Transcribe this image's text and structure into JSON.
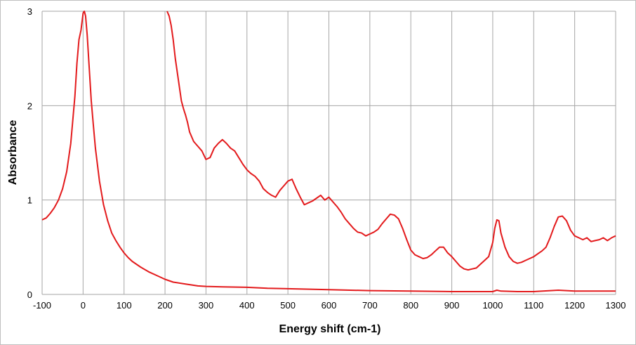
{
  "chart_data": {
    "type": "line",
    "xlabel": "Energy shift (cm-1)",
    "ylabel": "Absorbance",
    "xlim": [
      -100,
      1300
    ],
    "ylim": [
      0,
      3
    ],
    "x_ticks": [
      -100,
      0,
      100,
      200,
      300,
      400,
      500,
      600,
      700,
      800,
      900,
      1000,
      1100,
      1200,
      1300
    ],
    "y_ticks": [
      0,
      1,
      2,
      3
    ],
    "grid": true,
    "legend": "none",
    "line_color": "#e31a1c",
    "grid_color": "#a6a6a6",
    "series": [
      {
        "values": [
          [
            -100,
            0.79
          ],
          [
            -90,
            0.81
          ],
          [
            -80,
            0.86
          ],
          [
            -70,
            0.92
          ],
          [
            -60,
            1.0
          ],
          [
            -50,
            1.12
          ],
          [
            -40,
            1.3
          ],
          [
            -30,
            1.6
          ],
          [
            -20,
            2.1
          ],
          [
            -15,
            2.45
          ],
          [
            -10,
            2.7
          ],
          [
            -5,
            2.8
          ],
          [
            0,
            2.98
          ],
          [
            3,
            3.0
          ],
          [
            6,
            2.95
          ],
          [
            10,
            2.75
          ],
          [
            15,
            2.4
          ],
          [
            20,
            2.05
          ],
          [
            25,
            1.8
          ],
          [
            30,
            1.55
          ],
          [
            40,
            1.2
          ],
          [
            50,
            0.95
          ],
          [
            60,
            0.78
          ],
          [
            70,
            0.65
          ],
          [
            80,
            0.57
          ],
          [
            90,
            0.5
          ],
          [
            100,
            0.44
          ],
          [
            110,
            0.39
          ],
          [
            120,
            0.35
          ],
          [
            140,
            0.29
          ],
          [
            160,
            0.24
          ],
          [
            180,
            0.2
          ],
          [
            200,
            0.16
          ],
          [
            220,
            0.13
          ],
          [
            250,
            0.11
          ],
          [
            280,
            0.09
          ],
          [
            300,
            0.085
          ],
          [
            340,
            0.08
          ],
          [
            400,
            0.075
          ],
          [
            450,
            0.065
          ],
          [
            500,
            0.06
          ],
          [
            600,
            0.05
          ],
          [
            700,
            0.04
          ],
          [
            800,
            0.035
          ],
          [
            900,
            0.03
          ],
          [
            1000,
            0.03
          ],
          [
            1010,
            0.045
          ],
          [
            1020,
            0.035
          ],
          [
            1060,
            0.03
          ],
          [
            1100,
            0.03
          ],
          [
            1160,
            0.045
          ],
          [
            1200,
            0.035
          ],
          [
            1300,
            0.035
          ]
        ]
      },
      {
        "values": [
          [
            205,
            3.0
          ],
          [
            210,
            2.95
          ],
          [
            215,
            2.85
          ],
          [
            220,
            2.7
          ],
          [
            225,
            2.5
          ],
          [
            230,
            2.35
          ],
          [
            235,
            2.2
          ],
          [
            240,
            2.05
          ],
          [
            245,
            1.97
          ],
          [
            250,
            1.9
          ],
          [
            255,
            1.82
          ],
          [
            260,
            1.72
          ],
          [
            270,
            1.62
          ],
          [
            280,
            1.57
          ],
          [
            290,
            1.52
          ],
          [
            300,
            1.43
          ],
          [
            310,
            1.45
          ],
          [
            320,
            1.55
          ],
          [
            330,
            1.6
          ],
          [
            340,
            1.64
          ],
          [
            350,
            1.6
          ],
          [
            360,
            1.55
          ],
          [
            370,
            1.52
          ],
          [
            380,
            1.45
          ],
          [
            390,
            1.38
          ],
          [
            400,
            1.32
          ],
          [
            410,
            1.28
          ],
          [
            420,
            1.25
          ],
          [
            430,
            1.2
          ],
          [
            440,
            1.12
          ],
          [
            450,
            1.08
          ],
          [
            460,
            1.05
          ],
          [
            470,
            1.03
          ],
          [
            480,
            1.1
          ],
          [
            490,
            1.15
          ],
          [
            500,
            1.2
          ],
          [
            510,
            1.22
          ],
          [
            520,
            1.12
          ],
          [
            530,
            1.03
          ],
          [
            540,
            0.95
          ],
          [
            550,
            0.97
          ],
          [
            560,
            0.99
          ],
          [
            570,
            1.02
          ],
          [
            580,
            1.05
          ],
          [
            590,
            1.0
          ],
          [
            600,
            1.03
          ],
          [
            610,
            0.98
          ],
          [
            620,
            0.93
          ],
          [
            630,
            0.87
          ],
          [
            640,
            0.8
          ],
          [
            650,
            0.75
          ],
          [
            660,
            0.7
          ],
          [
            670,
            0.66
          ],
          [
            680,
            0.65
          ],
          [
            690,
            0.62
          ],
          [
            700,
            0.64
          ],
          [
            710,
            0.66
          ],
          [
            720,
            0.69
          ],
          [
            730,
            0.75
          ],
          [
            740,
            0.8
          ],
          [
            750,
            0.85
          ],
          [
            760,
            0.84
          ],
          [
            770,
            0.8
          ],
          [
            780,
            0.7
          ],
          [
            790,
            0.58
          ],
          [
            800,
            0.47
          ],
          [
            810,
            0.42
          ],
          [
            820,
            0.4
          ],
          [
            830,
            0.38
          ],
          [
            840,
            0.39
          ],
          [
            850,
            0.42
          ],
          [
            860,
            0.46
          ],
          [
            870,
            0.5
          ],
          [
            880,
            0.5
          ],
          [
            890,
            0.44
          ],
          [
            900,
            0.4
          ],
          [
            910,
            0.35
          ],
          [
            920,
            0.3
          ],
          [
            930,
            0.27
          ],
          [
            940,
            0.26
          ],
          [
            950,
            0.27
          ],
          [
            960,
            0.28
          ],
          [
            970,
            0.32
          ],
          [
            980,
            0.36
          ],
          [
            990,
            0.4
          ],
          [
            1000,
            0.55
          ],
          [
            1005,
            0.7
          ],
          [
            1010,
            0.79
          ],
          [
            1015,
            0.78
          ],
          [
            1020,
            0.65
          ],
          [
            1030,
            0.5
          ],
          [
            1040,
            0.4
          ],
          [
            1050,
            0.35
          ],
          [
            1060,
            0.33
          ],
          [
            1070,
            0.34
          ],
          [
            1080,
            0.36
          ],
          [
            1090,
            0.38
          ],
          [
            1100,
            0.4
          ],
          [
            1110,
            0.43
          ],
          [
            1120,
            0.46
          ],
          [
            1130,
            0.5
          ],
          [
            1140,
            0.6
          ],
          [
            1150,
            0.72
          ],
          [
            1160,
            0.82
          ],
          [
            1170,
            0.83
          ],
          [
            1180,
            0.78
          ],
          [
            1190,
            0.68
          ],
          [
            1200,
            0.62
          ],
          [
            1210,
            0.6
          ],
          [
            1220,
            0.58
          ],
          [
            1230,
            0.6
          ],
          [
            1240,
            0.56
          ],
          [
            1250,
            0.57
          ],
          [
            1260,
            0.58
          ],
          [
            1270,
            0.6
          ],
          [
            1280,
            0.57
          ],
          [
            1290,
            0.6
          ],
          [
            1300,
            0.62
          ]
        ]
      }
    ]
  }
}
